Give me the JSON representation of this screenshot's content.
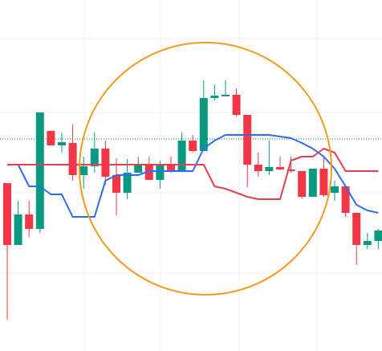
{
  "chart_data": {
    "type": "candlestick",
    "categories": [
      null,
      null,
      null,
      null,
      null,
      null,
      null,
      null,
      null,
      null,
      null,
      null,
      null,
      null,
      null,
      null,
      null,
      null,
      null,
      null,
      null,
      null,
      null,
      null,
      null,
      null,
      null,
      null,
      null,
      null,
      null,
      null,
      null,
      null,
      null
    ],
    "open": [
      209,
      132,
      170,
      152,
      274,
      256,
      259,
      219,
      230,
      252,
      219,
      197,
      222,
      232,
      213,
      232,
      224,
      262,
      249,
      315,
      317,
      319,
      294,
      232,
      224,
      229,
      226,
      224,
      192,
      227,
      197,
      205,
      172,
      132,
      137
    ],
    "high": [
      209,
      187,
      187,
      297,
      274,
      272,
      282,
      242,
      272,
      262,
      240,
      239,
      242,
      242,
      237,
      242,
      272,
      269,
      337,
      332,
      337,
      327,
      294,
      247,
      262,
      242,
      242,
      224,
      227,
      242,
      212,
      205,
      172,
      147,
      152
    ],
    "low": [
      39,
      132,
      142,
      147,
      256,
      247,
      212,
      202,
      222,
      207,
      169,
      189,
      222,
      213,
      202,
      222,
      224,
      247,
      249,
      312,
      317,
      292,
      204,
      217,
      219,
      225,
      222,
      190,
      192,
      192,
      187,
      167,
      107,
      127,
      127
    ],
    "close": [
      132,
      170,
      152,
      297,
      256,
      260,
      219,
      230,
      252,
      217,
      197,
      222,
      232,
      213,
      232,
      224,
      262,
      249,
      315,
      318,
      319,
      294,
      232,
      224,
      229,
      226,
      224,
      192,
      227,
      194,
      205,
      172,
      132,
      137,
      150
    ],
    "up_color": "#089981",
    "down_color": "#f23645",
    "series": [
      {
        "color": "#2f6bf0",
        "values": [
          232,
          232,
          205,
          205,
          195,
          195,
          167,
          167,
          167,
          212,
          219,
          219,
          219,
          224,
          224,
          224,
          224,
          224,
          252,
          262,
          269,
          269,
          269,
          269,
          269,
          267,
          265,
          259,
          252,
          242,
          227,
          205,
          182,
          175,
          172
        ]
      },
      {
        "color": "#e0404f",
        "values": [
          232,
          232,
          232,
          232,
          232,
          232,
          232,
          232,
          232,
          232,
          232,
          232,
          232,
          232,
          232,
          232,
          232,
          232,
          232,
          205,
          202,
          197,
          192,
          189,
          189,
          189,
          237,
          242,
          242,
          252,
          247,
          224,
          224,
          224,
          224
        ]
      }
    ],
    "reference_line": {
      "value": 264,
      "color": "#1e7a6a"
    },
    "ylim": [
      0,
      437
    ]
  }
}
